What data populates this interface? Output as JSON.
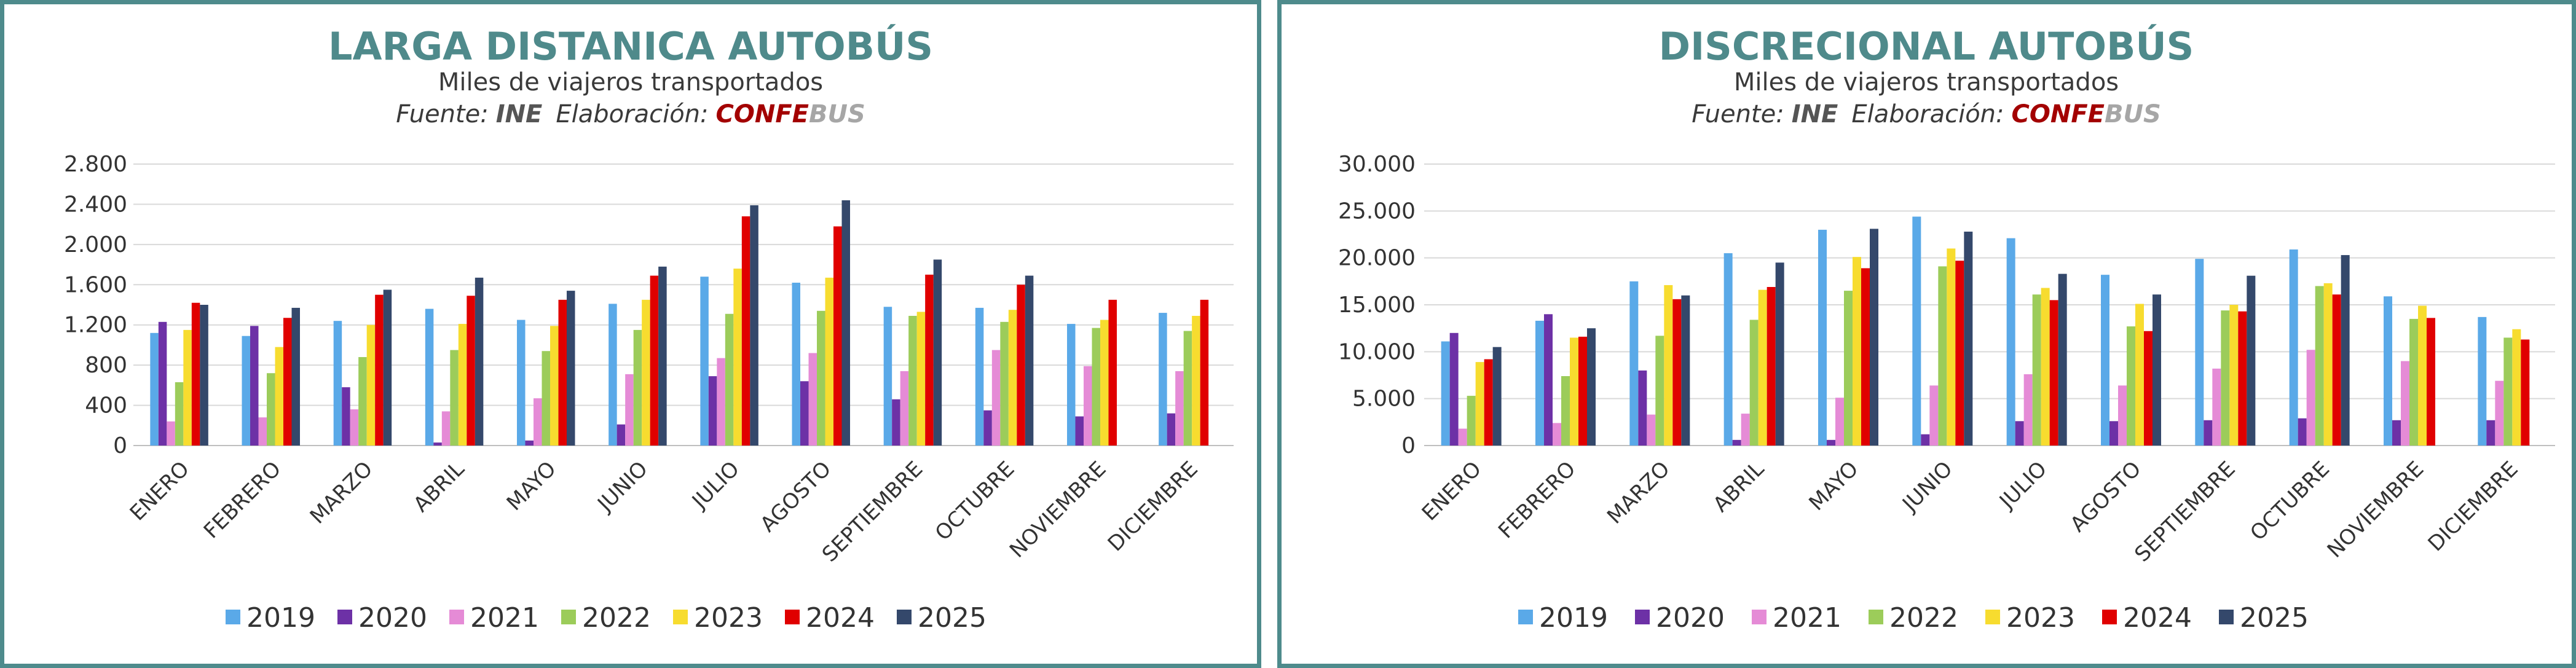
{
  "source": {
    "prefix": "Fuente:",
    "ine": "INE",
    "elab": "Elaboración:",
    "confe": "CONFE",
    "bus": "BUS",
    "colors": {
      "confe": "#a30000",
      "bus": "#a6a6a6",
      "ine": "#555555"
    }
  },
  "palette": [
    "#5aa9e8",
    "#6d31a6",
    "#e58bd6",
    "#9ccc5a",
    "#f7dc2f",
    "#e00000",
    "#34486b"
  ],
  "chart_data": [
    {
      "type": "bar",
      "title": "LARGA DISTANICA AUTOBÚS",
      "subtitle": "Miles de viajeros transportados",
      "ylim": [
        0,
        2800
      ],
      "yticks": [
        0,
        400,
        800,
        1200,
        1600,
        2000,
        2400,
        2800
      ],
      "ytick_labels": [
        "0",
        "400",
        "800",
        "1.200",
        "1.600",
        "2.000",
        "2.400",
        "2.800"
      ],
      "grid": true,
      "legend_position": "bottom",
      "categories": [
        "ENERO",
        "FEBRERO",
        "MARZO",
        "ABRIL",
        "MAYO",
        "JUNIO",
        "JULIO",
        "AGOSTO",
        "SEPTIEMBRE",
        "OCTUBRE",
        "NOVIEMBRE",
        "DICIEMBRE"
      ],
      "series": [
        {
          "name": "2019",
          "values": [
            1120,
            1090,
            1240,
            1360,
            1250,
            1410,
            1680,
            1620,
            1380,
            1370,
            1210,
            1320
          ]
        },
        {
          "name": "2020",
          "values": [
            1230,
            1190,
            580,
            30,
            50,
            210,
            690,
            640,
            460,
            350,
            290,
            320
          ]
        },
        {
          "name": "2021",
          "values": [
            240,
            280,
            360,
            340,
            470,
            710,
            870,
            920,
            740,
            950,
            790,
            740
          ]
        },
        {
          "name": "2022",
          "values": [
            630,
            720,
            880,
            950,
            940,
            1150,
            1310,
            1340,
            1290,
            1230,
            1170,
            1140
          ]
        },
        {
          "name": "2023",
          "values": [
            1150,
            980,
            1200,
            1210,
            1190,
            1450,
            1760,
            1670,
            1330,
            1350,
            1250,
            1290
          ]
        },
        {
          "name": "2024",
          "values": [
            1420,
            1270,
            1500,
            1490,
            1450,
            1690,
            2280,
            2180,
            1700,
            1600,
            1450,
            1450
          ]
        },
        {
          "name": "2025",
          "values": [
            1400,
            1370,
            1550,
            1670,
            1540,
            1780,
            2390,
            2440,
            1850,
            1690,
            null,
            null
          ]
        }
      ]
    },
    {
      "type": "bar",
      "title": "DISCRECIONAL AUTOBÚS",
      "subtitle": "Miles de viajeros transportados",
      "ylim": [
        0,
        30000
      ],
      "yticks": [
        0,
        5000,
        10000,
        15000,
        20000,
        25000,
        30000
      ],
      "ytick_labels": [
        "0",
        "5.000",
        "10.000",
        "15.000",
        "20.000",
        "25.000",
        "30.000"
      ],
      "grid": true,
      "legend_position": "bottom",
      "categories": [
        "ENERO",
        "FEBRERO",
        "MARZO",
        "ABRIL",
        "MAYO",
        "JUNIO",
        "JULIO",
        "AGOSTO",
        "SEPTIEMBRE",
        "OCTUBRE",
        "NOVIEMBRE",
        "DICIEMBRE"
      ],
      "series": [
        {
          "name": "2019",
          "values": [
            11100,
            13300,
            17500,
            20500,
            23000,
            24400,
            22100,
            18200,
            19900,
            20900,
            15900,
            13700
          ]
        },
        {
          "name": "2020",
          "values": [
            12000,
            14000,
            8000,
            600,
            600,
            1200,
            2600,
            2600,
            2700,
            2900,
            2700,
            2700
          ]
        },
        {
          "name": "2021",
          "values": [
            1800,
            2400,
            3300,
            3400,
            5100,
            6400,
            7600,
            6400,
            8200,
            10200,
            9000,
            6900
          ]
        },
        {
          "name": "2022",
          "values": [
            5300,
            7400,
            11700,
            13400,
            16500,
            19100,
            16100,
            12700,
            14400,
            17000,
            13500,
            11500
          ]
        },
        {
          "name": "2023",
          "values": [
            8900,
            11500,
            17100,
            16600,
            20100,
            21000,
            16800,
            15100,
            15000,
            17300,
            14900,
            12400
          ]
        },
        {
          "name": "2024",
          "values": [
            9200,
            11600,
            15600,
            16900,
            18900,
            19700,
            15500,
            12200,
            14300,
            16100,
            13600,
            11300
          ]
        },
        {
          "name": "2025",
          "values": [
            10500,
            12500,
            16000,
            19500,
            23100,
            22800,
            18300,
            16100,
            18100,
            20300,
            null,
            null
          ]
        }
      ]
    }
  ]
}
